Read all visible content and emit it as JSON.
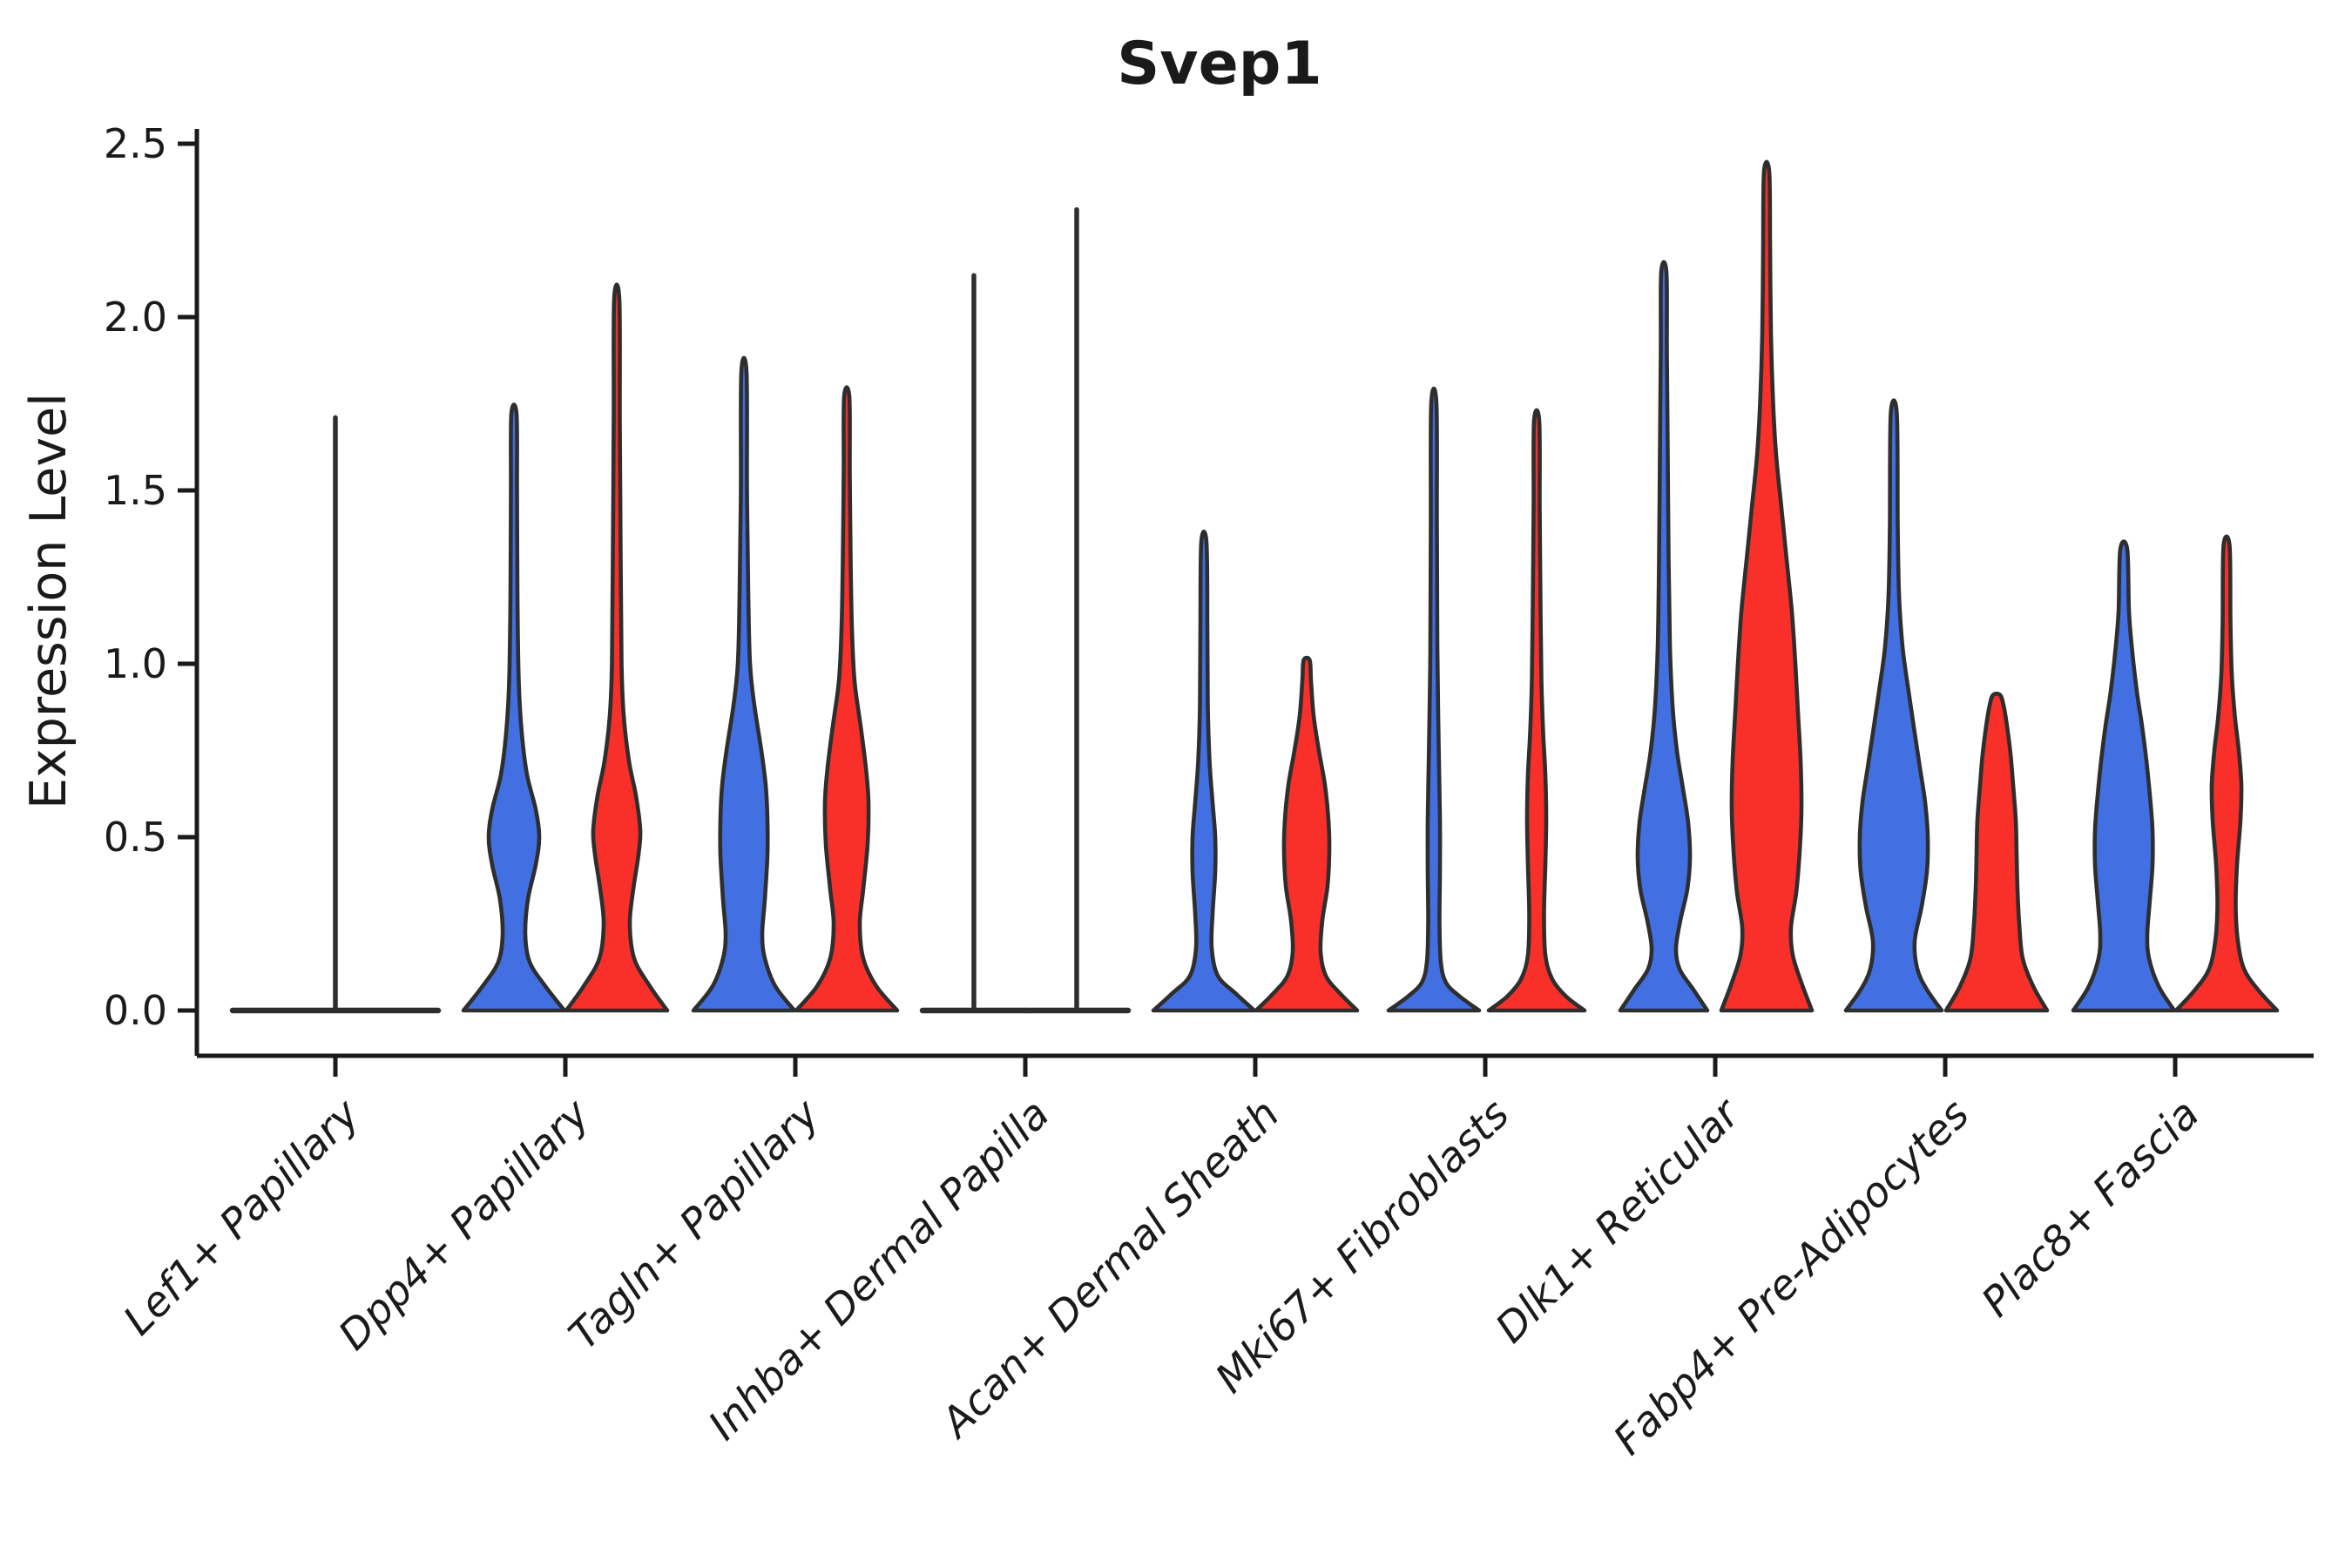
{
  "title": "Svep1",
  "y_axis": {
    "label": "Expression Level",
    "tick_labels": [
      "0.0",
      "0.5",
      "1.0",
      "1.5",
      "2.0",
      "2.5"
    ],
    "tick_values": [
      0.0,
      0.5,
      1.0,
      1.5,
      2.0,
      2.5
    ]
  },
  "x_axis": {
    "categories": [
      "Lef1+ Papillary",
      "Dpp4+ Papillary",
      "Tagln+ Papillary",
      "Inhba+ Dermal Papilla",
      "Acan+ Dermal Sheath",
      "Mki67+ Fibroblasts",
      "Dlk1+ Reticular",
      "Fabp4+ Pre-Adipocytes",
      "Plac8+ Fascia"
    ]
  },
  "colors": {
    "blue": "#4270E3",
    "red": "#F93029",
    "outline": "#2e2e2e",
    "axis": "#1a1a1a"
  },
  "chart_data": {
    "type": "violin",
    "title": "Svep1",
    "xlabel": "",
    "ylabel": "Expression Level",
    "ylim": [
      0,
      2.5
    ],
    "ytick_values": [
      0.0,
      0.5,
      1.0,
      1.5,
      2.0,
      2.5
    ],
    "ytick_labels": [
      "0.0",
      "0.5",
      "1.0",
      "1.5",
      "2.0",
      "2.5"
    ],
    "legend": "none",
    "grid": false,
    "series_colors": {
      "blue": "#4270E3",
      "red": "#F93029"
    },
    "note": "Split violin plot, two conditions (blue, red) per cell-type group. profile = [expression_value, half_width_px]; max = maximum expression reached by the violin tip.",
    "groups": [
      {
        "label": "Lef1+ Papillary",
        "violins": [
          {
            "side": "single",
            "type": "flat",
            "offset": 0,
            "halfspan": 118,
            "max": 1.71
          }
        ]
      },
      {
        "label": "Dpp4+ Papillary",
        "violins": [
          {
            "side": "blue",
            "type": "shape",
            "offset": -59,
            "max": 1.72,
            "profile": [
              [
                0,
                58
              ],
              [
                0.07,
                36
              ],
              [
                0.14,
                18
              ],
              [
                0.22,
                13
              ],
              [
                0.32,
                16
              ],
              [
                0.42,
                25
              ],
              [
                0.5,
                29
              ],
              [
                0.58,
                25
              ],
              [
                0.68,
                15
              ],
              [
                0.8,
                9
              ],
              [
                0.95,
                5.5
              ],
              [
                1.2,
                4
              ],
              [
                1.5,
                3.5
              ],
              [
                1.72,
                3
              ]
            ]
          },
          {
            "side": "red",
            "type": "shape",
            "offset": 59,
            "max": 2.05,
            "profile": [
              [
                0,
                58
              ],
              [
                0.07,
                38
              ],
              [
                0.15,
                20
              ],
              [
                0.25,
                15
              ],
              [
                0.35,
                19
              ],
              [
                0.45,
                25
              ],
              [
                0.52,
                27
              ],
              [
                0.62,
                22
              ],
              [
                0.72,
                14
              ],
              [
                0.85,
                8
              ],
              [
                1.0,
                5.5
              ],
              [
                1.3,
                4.5
              ],
              [
                1.7,
                3.5
              ],
              [
                2.05,
                3
              ]
            ]
          }
        ]
      },
      {
        "label": "Tagln+ Papillary",
        "violins": [
          {
            "side": "blue",
            "type": "shape",
            "offset": -59,
            "max": 1.84,
            "profile": [
              [
                0,
                58
              ],
              [
                0.07,
                36
              ],
              [
                0.15,
                24
              ],
              [
                0.22,
                21
              ],
              [
                0.32,
                24
              ],
              [
                0.45,
                27
              ],
              [
                0.55,
                27
              ],
              [
                0.65,
                25
              ],
              [
                0.75,
                20
              ],
              [
                0.88,
                12
              ],
              [
                1.0,
                7
              ],
              [
                1.2,
                5
              ],
              [
                1.5,
                3.5
              ],
              [
                1.84,
                3
              ]
            ]
          },
          {
            "side": "red",
            "type": "shape",
            "offset": 59,
            "max": 1.77,
            "profile": [
              [
                0,
                58
              ],
              [
                0.07,
                34
              ],
              [
                0.15,
                19
              ],
              [
                0.25,
                15
              ],
              [
                0.35,
                19
              ],
              [
                0.48,
                24
              ],
              [
                0.6,
                25
              ],
              [
                0.7,
                22
              ],
              [
                0.82,
                16
              ],
              [
                0.95,
                9
              ],
              [
                1.1,
                6
              ],
              [
                1.3,
                4.5
              ],
              [
                1.55,
                3.5
              ],
              [
                1.77,
                3
              ]
            ]
          }
        ]
      },
      {
        "label": "Inhba+ Dermal Papilla",
        "violins": [
          {
            "side": "blue",
            "type": "flat",
            "offset": -59,
            "halfspan": 59,
            "max": 2.12
          },
          {
            "side": "red",
            "type": "flat",
            "offset": 59,
            "halfspan": 59,
            "max": 2.31
          }
        ]
      },
      {
        "label": "Acan+ Dermal Sheath",
        "violins": [
          {
            "side": "blue",
            "type": "shape",
            "offset": -59,
            "max": 1.35,
            "profile": [
              [
                0,
                58
              ],
              [
                0.05,
                36
              ],
              [
                0.1,
                16
              ],
              [
                0.18,
                9
              ],
              [
                0.28,
                10
              ],
              [
                0.4,
                13
              ],
              [
                0.5,
                13
              ],
              [
                0.6,
                10
              ],
              [
                0.72,
                6.5
              ],
              [
                0.88,
                4.5
              ],
              [
                1.1,
                4
              ],
              [
                1.35,
                3
              ]
            ]
          },
          {
            "side": "red",
            "type": "shape",
            "offset": 59,
            "max": 1.01,
            "profile": [
              [
                0,
                58
              ],
              [
                0.05,
                38
              ],
              [
                0.1,
                22
              ],
              [
                0.17,
                16
              ],
              [
                0.26,
                18
              ],
              [
                0.36,
                24
              ],
              [
                0.46,
                26
              ],
              [
                0.55,
                25
              ],
              [
                0.65,
                21
              ],
              [
                0.75,
                14
              ],
              [
                0.85,
                8
              ],
              [
                0.95,
                5
              ],
              [
                1.01,
                3.5
              ]
            ]
          }
        ]
      },
      {
        "label": "Mki67+ Fibroblasts",
        "violins": [
          {
            "side": "blue",
            "type": "shape",
            "offset": -59,
            "max": 1.75,
            "profile": [
              [
                0,
                52
              ],
              [
                0.04,
                30
              ],
              [
                0.08,
                14
              ],
              [
                0.14,
                8
              ],
              [
                0.25,
                6.5
              ],
              [
                0.4,
                7
              ],
              [
                0.55,
                7
              ],
              [
                0.7,
                6
              ],
              [
                0.85,
                5
              ],
              [
                1.05,
                4
              ],
              [
                1.4,
                3.5
              ],
              [
                1.75,
                3
              ]
            ]
          },
          {
            "side": "red",
            "type": "shape",
            "offset": 59,
            "max": 1.7,
            "profile": [
              [
                0,
                55
              ],
              [
                0.04,
                34
              ],
              [
                0.09,
                18
              ],
              [
                0.16,
                10
              ],
              [
                0.28,
                8.5
              ],
              [
                0.42,
                10
              ],
              [
                0.55,
                11
              ],
              [
                0.68,
                10
              ],
              [
                0.8,
                7.5
              ],
              [
                0.95,
                5.5
              ],
              [
                1.15,
                4.5
              ],
              [
                1.45,
                3.5
              ],
              [
                1.7,
                3
              ]
            ]
          }
        ]
      },
      {
        "label": "Dlk1+ Reticular",
        "violins": [
          {
            "side": "blue",
            "type": "shape",
            "offset": -59,
            "max": 2.13,
            "profile": [
              [
                0,
                50
              ],
              [
                0.06,
                34
              ],
              [
                0.12,
                18
              ],
              [
                0.18,
                14
              ],
              [
                0.26,
                19
              ],
              [
                0.35,
                27
              ],
              [
                0.44,
                30
              ],
              [
                0.54,
                28
              ],
              [
                0.64,
                22
              ],
              [
                0.75,
                15
              ],
              [
                0.88,
                10
              ],
              [
                1.05,
                7
              ],
              [
                1.3,
                5.5
              ],
              [
                1.6,
                4.5
              ],
              [
                1.9,
                3.5
              ],
              [
                2.13,
                3
              ]
            ]
          },
          {
            "side": "red",
            "type": "shape",
            "offset": 59,
            "max": 2.42,
            "profile": [
              [
                0,
                52
              ],
              [
                0.08,
                40
              ],
              [
                0.16,
                30
              ],
              [
                0.24,
                28
              ],
              [
                0.34,
                34
              ],
              [
                0.46,
                38
              ],
              [
                0.58,
                40
              ],
              [
                0.72,
                39
              ],
              [
                0.86,
                36
              ],
              [
                1.0,
                33
              ],
              [
                1.15,
                29
              ],
              [
                1.3,
                23
              ],
              [
                1.45,
                17
              ],
              [
                1.6,
                11
              ],
              [
                1.75,
                7.5
              ],
              [
                1.95,
                5
              ],
              [
                2.2,
                4
              ],
              [
                2.42,
                3
              ]
            ]
          }
        ]
      },
      {
        "label": "Fabp4+ Pre-Adipocytes",
        "violins": [
          {
            "side": "blue",
            "type": "shape",
            "offset": -59,
            "max": 1.72,
            "profile": [
              [
                0,
                55
              ],
              [
                0.06,
                38
              ],
              [
                0.12,
                27
              ],
              [
                0.2,
                24
              ],
              [
                0.3,
                32
              ],
              [
                0.4,
                38
              ],
              [
                0.5,
                39
              ],
              [
                0.6,
                36
              ],
              [
                0.7,
                30
              ],
              [
                0.8,
                24
              ],
              [
                0.92,
                17
              ],
              [
                1.05,
                10
              ],
              [
                1.2,
                6
              ],
              [
                1.4,
                4.5
              ],
              [
                1.72,
                3.5
              ]
            ]
          },
          {
            "side": "red",
            "type": "shape",
            "offset": 59,
            "max": 0.91,
            "profile": [
              [
                0,
                58
              ],
              [
                0.07,
                42
              ],
              [
                0.15,
                30
              ],
              [
                0.25,
                26
              ],
              [
                0.35,
                24
              ],
              [
                0.45,
                23
              ],
              [
                0.55,
                22
              ],
              [
                0.65,
                19
              ],
              [
                0.74,
                16
              ],
              [
                0.82,
                12
              ],
              [
                0.88,
                8
              ],
              [
                0.91,
                4
              ]
            ]
          }
        ]
      },
      {
        "label": "Plac8+ Fascia",
        "violins": [
          {
            "side": "blue",
            "type": "shape",
            "offset": -59,
            "max": 1.33,
            "profile": [
              [
                0,
                58
              ],
              [
                0.07,
                40
              ],
              [
                0.15,
                29
              ],
              [
                0.22,
                27
              ],
              [
                0.32,
                30
              ],
              [
                0.42,
                33
              ],
              [
                0.52,
                33
              ],
              [
                0.62,
                30
              ],
              [
                0.72,
                26
              ],
              [
                0.82,
                21
              ],
              [
                0.92,
                15
              ],
              [
                1.03,
                10
              ],
              [
                1.15,
                6
              ],
              [
                1.33,
                4
              ]
            ]
          },
          {
            "side": "red",
            "type": "shape",
            "offset": 59,
            "max": 1.34,
            "profile": [
              [
                0,
                58
              ],
              [
                0.06,
                36
              ],
              [
                0.12,
                20
              ],
              [
                0.2,
                13
              ],
              [
                0.3,
                10.5
              ],
              [
                0.42,
                12
              ],
              [
                0.55,
                16
              ],
              [
                0.65,
                17
              ],
              [
                0.75,
                14
              ],
              [
                0.85,
                9.5
              ],
              [
                0.97,
                6
              ],
              [
                1.12,
                4.5
              ],
              [
                1.34,
                3.5
              ]
            ]
          }
        ]
      }
    ]
  }
}
